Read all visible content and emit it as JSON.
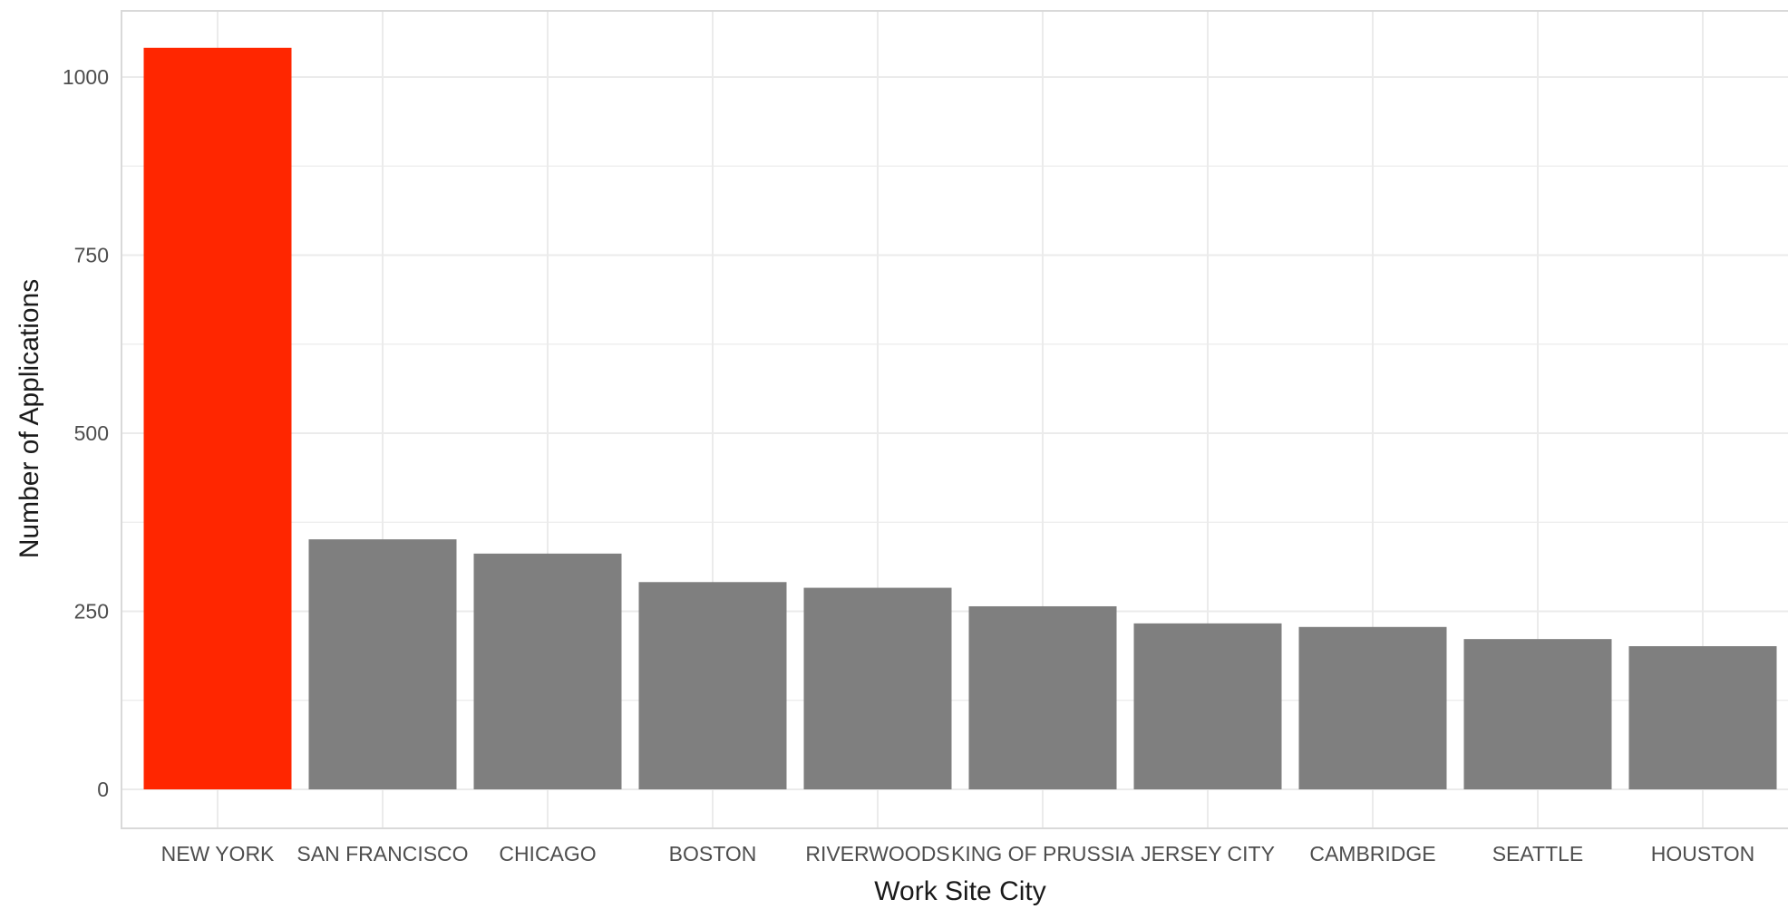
{
  "chart_data": {
    "type": "bar",
    "xlabel": "Work Site City",
    "ylabel": "Number of Applications",
    "categories": [
      "NEW YORK",
      "SAN FRANCISCO",
      "CHICAGO",
      "BOSTON",
      "RIVERWOODS",
      "KING OF PRUSSIA",
      "JERSEY CITY",
      "CAMBRIDGE",
      "SEATTLE",
      "HOUSTON"
    ],
    "values": [
      1041,
      351,
      331,
      291,
      283,
      257,
      233,
      228,
      211,
      201
    ],
    "ylim": [
      -52,
      1094
    ],
    "yticks": [
      0,
      250,
      500,
      750,
      1000
    ],
    "grid": true,
    "legend": "none",
    "colors": {
      "highlight": "#ff2600",
      "default": "#7f7f7f",
      "grid": "#ebebeb",
      "panel_border": "#d9d9d9"
    },
    "highlight_index": 0
  }
}
